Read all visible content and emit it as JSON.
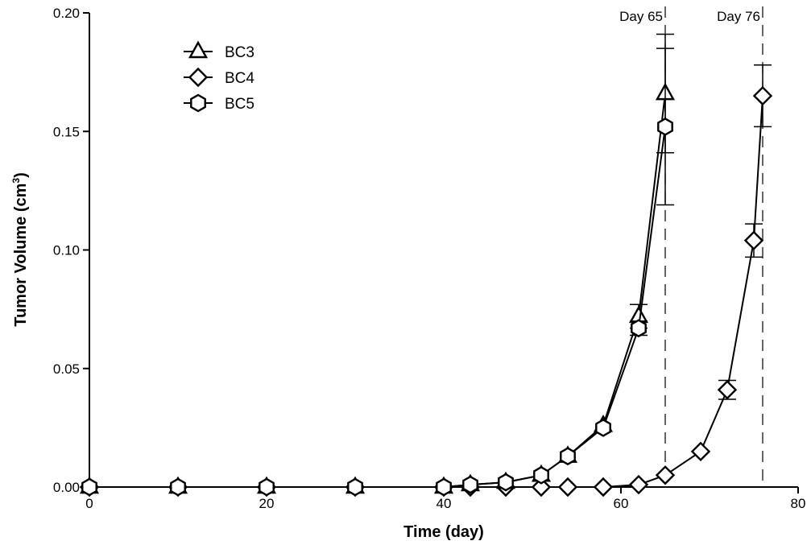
{
  "chart_data": {
    "type": "line",
    "title": "",
    "xlabel": "Time (day)",
    "ylabel_main": "Tumor Volume (cm",
    "ylabel_sup": "3",
    "ylabel_close": ")",
    "xlim": [
      0,
      80
    ],
    "ylim": [
      0,
      0.2
    ],
    "xticks": [
      0,
      20,
      40,
      60,
      80
    ],
    "xtick_labels": [
      "0",
      "20",
      "40",
      "60",
      "80"
    ],
    "yticks": [
      0,
      0.05,
      0.1,
      0.15,
      0.2
    ],
    "ytick_labels": [
      "0.00",
      "0.05",
      "0.10",
      "0.15",
      "0.20"
    ],
    "grid": false,
    "legend_position": "top-left",
    "annotations": [
      {
        "x": 65,
        "text": "Day 65"
      },
      {
        "x": 76,
        "text": "Day 76"
      }
    ],
    "series": [
      {
        "name": "BC3",
        "marker": "triangle",
        "points": [
          {
            "x": 0,
            "y": 0.0
          },
          {
            "x": 10,
            "y": 0.0
          },
          {
            "x": 20,
            "y": 0.0
          },
          {
            "x": 30,
            "y": 0.0
          },
          {
            "x": 40,
            "y": 0.0
          },
          {
            "x": 43,
            "y": 0.001
          },
          {
            "x": 47,
            "y": 0.002
          },
          {
            "x": 51,
            "y": 0.005
          },
          {
            "x": 54,
            "y": 0.013
          },
          {
            "x": 58,
            "y": 0.026
          },
          {
            "x": 62,
            "y": 0.072,
            "err": 0.005
          },
          {
            "x": 65,
            "y": 0.166,
            "err": 0.025
          }
        ]
      },
      {
        "name": "BC4",
        "marker": "diamond",
        "points": [
          {
            "x": 0,
            "y": 0.0
          },
          {
            "x": 10,
            "y": 0.0
          },
          {
            "x": 20,
            "y": 0.0
          },
          {
            "x": 30,
            "y": 0.0
          },
          {
            "x": 40,
            "y": 0.0
          },
          {
            "x": 43,
            "y": 0.0
          },
          {
            "x": 47,
            "y": 0.0
          },
          {
            "x": 51,
            "y": 0.0
          },
          {
            "x": 54,
            "y": 0.0
          },
          {
            "x": 58,
            "y": 0.0
          },
          {
            "x": 62,
            "y": 0.001
          },
          {
            "x": 65,
            "y": 0.005
          },
          {
            "x": 69,
            "y": 0.015
          },
          {
            "x": 72,
            "y": 0.041,
            "err": 0.004
          },
          {
            "x": 75,
            "y": 0.104,
            "err": 0.007
          },
          {
            "x": 76,
            "y": 0.165,
            "err": 0.013
          }
        ]
      },
      {
        "name": "BC5",
        "marker": "hexagon",
        "points": [
          {
            "x": 0,
            "y": 0.0
          },
          {
            "x": 10,
            "y": 0.0
          },
          {
            "x": 20,
            "y": 0.0
          },
          {
            "x": 30,
            "y": 0.0
          },
          {
            "x": 40,
            "y": 0.0
          },
          {
            "x": 43,
            "y": 0.001
          },
          {
            "x": 47,
            "y": 0.002
          },
          {
            "x": 51,
            "y": 0.005
          },
          {
            "x": 54,
            "y": 0.013
          },
          {
            "x": 58,
            "y": 0.025
          },
          {
            "x": 62,
            "y": 0.067,
            "err": 0.003
          },
          {
            "x": 65,
            "y": 0.152,
            "err": 0.033
          }
        ]
      }
    ]
  }
}
